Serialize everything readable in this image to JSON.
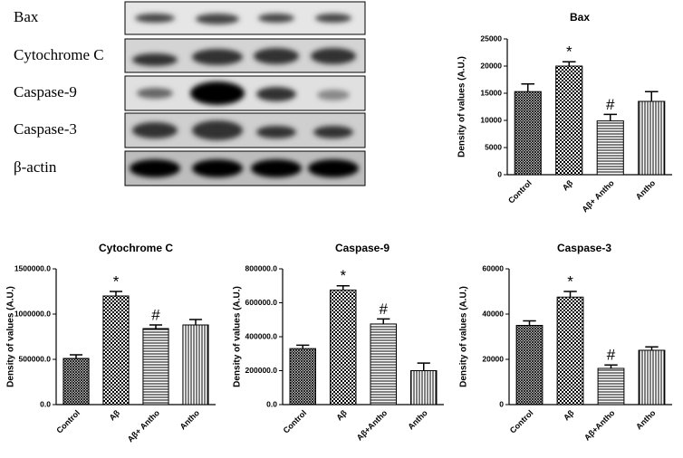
{
  "blot": {
    "labels": [
      "Bax",
      "Cytochrome  C",
      "Caspase-9",
      "Caspase-3",
      "β-actin"
    ]
  },
  "chart_data": [
    {
      "type": "bar",
      "title": "Bax",
      "ylabel": "Density of values (A.U.)",
      "categories": [
        "Control",
        "Aβ",
        "Aβ+ Antho",
        "Antho"
      ],
      "values": [
        15300,
        20000,
        9900,
        13500
      ],
      "errors": [
        1400,
        800,
        1200,
        1800
      ],
      "value_markers": [
        null,
        "*",
        "#",
        null
      ],
      "patterns": [
        "crosshatch",
        "checker",
        "hlines",
        "vlines"
      ],
      "color": "#000000",
      "ylim": [
        0,
        25000
      ],
      "yticks": [
        0,
        5000,
        10000,
        15000,
        20000,
        25000
      ]
    },
    {
      "type": "bar",
      "title": "Cytochrome C",
      "ylabel": "Density of values (A.U.)",
      "categories": [
        "Control",
        "Aβ",
        "Aβ+ Antho",
        "Antho"
      ],
      "values": [
        510000,
        1200000,
        840000,
        880000
      ],
      "errors": [
        40000,
        50000,
        40000,
        60000
      ],
      "value_markers": [
        null,
        "*",
        "#",
        null
      ],
      "patterns": [
        "crosshatch",
        "checker",
        "hlines",
        "vlines"
      ],
      "color": "#000000",
      "ylim": [
        0,
        1500000
      ],
      "yticks": [
        {
          "value": 0,
          "label": "0.0"
        },
        {
          "value": 500000,
          "label": "500000.0"
        },
        {
          "value": 1000000,
          "label": "1000000.0"
        },
        {
          "value": 1500000,
          "label": "1500000.0"
        }
      ]
    },
    {
      "type": "bar",
      "title": "Caspase-9",
      "ylabel": "Density of values (A.U.)",
      "categories": [
        "Control",
        "Aβ",
        "Aβ+Antho",
        "Antho"
      ],
      "values": [
        330000,
        675000,
        475000,
        200000
      ],
      "errors": [
        20000,
        25000,
        30000,
        45000
      ],
      "value_markers": [
        null,
        "*",
        "#",
        null
      ],
      "patterns": [
        "crosshatch",
        "checker",
        "hlines",
        "vlines"
      ],
      "color": "#000000",
      "ylim": [
        0,
        800000
      ],
      "yticks": [
        {
          "value": 0,
          "label": "0.0"
        },
        {
          "value": 200000,
          "label": "200000.0"
        },
        {
          "value": 400000,
          "label": "400000.0"
        },
        {
          "value": 600000,
          "label": "600000.0"
        },
        {
          "value": 800000,
          "label": "800000.0"
        }
      ]
    },
    {
      "type": "bar",
      "title": "Caspase-3",
      "ylabel": "Density of values (A.U.)",
      "categories": [
        "Control",
        "Aβ",
        "Aβ+Antho",
        "Antho"
      ],
      "values": [
        35000,
        47500,
        16000,
        24000
      ],
      "errors": [
        2000,
        2500,
        1500,
        1500
      ],
      "value_markers": [
        null,
        "*",
        "#",
        null
      ],
      "patterns": [
        "crosshatch",
        "checker",
        "hlines",
        "vlines"
      ],
      "color": "#000000",
      "ylim": [
        0,
        60000
      ],
      "yticks": [
        0,
        20000,
        40000,
        60000
      ]
    }
  ]
}
